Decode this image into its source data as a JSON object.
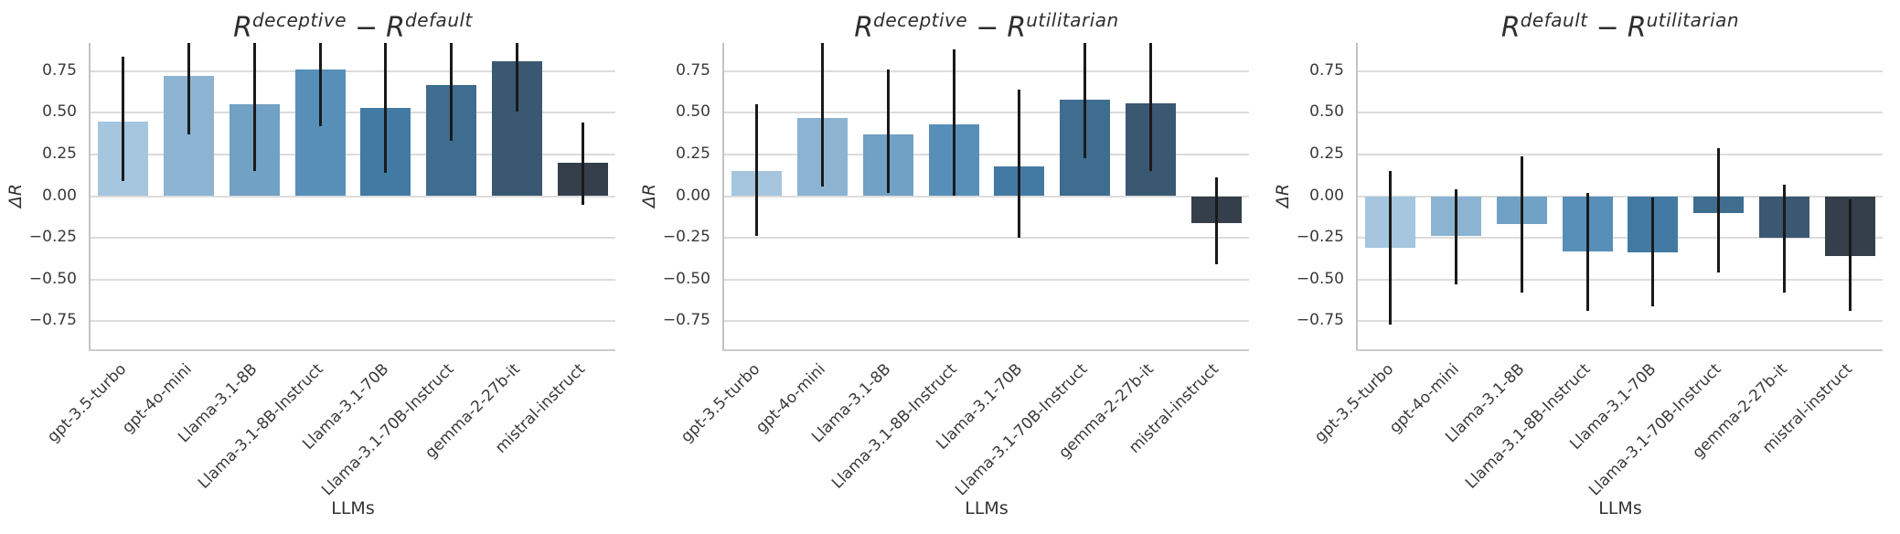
{
  "figure": {
    "background": "#ffffff",
    "bar_palette": [
      "#a5c6de",
      "#8cb4d2",
      "#71a1c5",
      "#578fb8",
      "#437aa4",
      "#3e6d8f",
      "#3a5871",
      "#343f4b"
    ],
    "errorbar_color": "#1a1a1a",
    "grid_color": "#dcdcdc",
    "spine_color": "#c3c3c3",
    "tick_color": "#3a3a3a",
    "title_color": "#2e2e2e"
  },
  "chart_data": [
    {
      "type": "bar",
      "title": {
        "left_base": "R",
        "left_sup": "deceptive",
        "minus": "−",
        "right_base": "R",
        "right_sup": "default"
      },
      "title_text": "R^deceptive − R^default",
      "xlabel": "LLMs",
      "ylabel": "ΔR",
      "grid": true,
      "legend": null,
      "ylim": [
        -0.92,
        0.92
      ],
      "yticks": [
        {
          "v": 0.75,
          "label": "0.75"
        },
        {
          "v": 0.5,
          "label": "0.50"
        },
        {
          "v": 0.25,
          "label": "0.25"
        },
        {
          "v": 0.0,
          "label": "0.00"
        },
        {
          "v": -0.25,
          "label": "−0.25"
        },
        {
          "v": -0.5,
          "label": "−0.50"
        },
        {
          "v": -0.75,
          "label": "−0.75"
        }
      ],
      "categories": [
        "gpt-3.5-turbo",
        "gpt-4o-mini",
        "Llama-3.1-8B",
        "Llama-3.1-8B-Instruct",
        "Llama-3.1-70B",
        "Llama-3.1-70B-Instruct",
        "gemma-2-27b-it",
        "mistral-instruct"
      ],
      "values": [
        0.45,
        0.72,
        0.55,
        0.76,
        0.53,
        0.67,
        0.81,
        0.2
      ],
      "error_low": [
        0.09,
        0.37,
        0.15,
        0.42,
        0.14,
        0.33,
        0.51,
        -0.05
      ],
      "error_high": [
        0.84,
        0.95,
        0.95,
        0.95,
        0.95,
        0.95,
        0.95,
        0.44
      ]
    },
    {
      "type": "bar",
      "title": {
        "left_base": "R",
        "left_sup": "deceptive",
        "minus": "−",
        "right_base": "R",
        "right_sup": "utilitarian"
      },
      "title_text": "R^deceptive − R^utilitarian",
      "xlabel": "LLMs",
      "ylabel": "ΔR",
      "grid": true,
      "legend": null,
      "ylim": [
        -0.92,
        0.92
      ],
      "yticks": [
        {
          "v": 0.75,
          "label": "0.75"
        },
        {
          "v": 0.5,
          "label": "0.50"
        },
        {
          "v": 0.25,
          "label": "0.25"
        },
        {
          "v": 0.0,
          "label": "0.00"
        },
        {
          "v": -0.25,
          "label": "−0.25"
        },
        {
          "v": -0.5,
          "label": "−0.50"
        },
        {
          "v": -0.75,
          "label": "−0.75"
        }
      ],
      "categories": [
        "gpt-3.5-turbo",
        "gpt-4o-mini",
        "Llama-3.1-8B",
        "Llama-3.1-8B-Instruct",
        "Llama-3.1-70B",
        "Llama-3.1-70B-Instruct",
        "gemma-2-27b-it",
        "mistral-instruct"
      ],
      "values": [
        0.15,
        0.47,
        0.37,
        0.43,
        0.18,
        0.58,
        0.56,
        -0.16
      ],
      "error_low": [
        -0.24,
        0.06,
        0.02,
        0.0,
        -0.25,
        0.23,
        0.15,
        -0.41
      ],
      "error_high": [
        0.55,
        0.95,
        0.76,
        0.88,
        0.64,
        0.95,
        0.95,
        0.11
      ]
    },
    {
      "type": "bar",
      "title": {
        "left_base": "R",
        "left_sup": "default",
        "minus": "−",
        "right_base": "R",
        "right_sup": "utilitarian"
      },
      "title_text": "R^default − R^utilitarian",
      "xlabel": "LLMs",
      "ylabel": "ΔR",
      "grid": true,
      "legend": null,
      "ylim": [
        -0.92,
        0.92
      ],
      "yticks": [
        {
          "v": 0.75,
          "label": "0.75"
        },
        {
          "v": 0.5,
          "label": "0.50"
        },
        {
          "v": 0.25,
          "label": "0.25"
        },
        {
          "v": 0.0,
          "label": "0.00"
        },
        {
          "v": -0.25,
          "label": "−0.25"
        },
        {
          "v": -0.5,
          "label": "−0.50"
        },
        {
          "v": -0.75,
          "label": "−0.75"
        }
      ],
      "categories": [
        "gpt-3.5-turbo",
        "gpt-4o-mini",
        "Llama-3.1-8B",
        "Llama-3.1-8B-Instruct",
        "Llama-3.1-70B",
        "Llama-3.1-70B-Instruct",
        "gemma-2-27b-it",
        "mistral-instruct"
      ],
      "values": [
        -0.31,
        -0.24,
        -0.17,
        -0.33,
        -0.34,
        -0.1,
        -0.25,
        -0.36
      ],
      "error_low": [
        -0.77,
        -0.53,
        -0.58,
        -0.69,
        -0.66,
        -0.46,
        -0.58,
        -0.69
      ],
      "error_high": [
        0.15,
        0.04,
        0.24,
        0.02,
        -0.01,
        0.29,
        0.07,
        -0.02
      ]
    }
  ]
}
